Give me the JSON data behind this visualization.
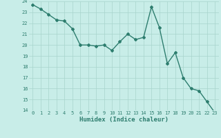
{
  "x": [
    0,
    1,
    2,
    3,
    4,
    5,
    6,
    7,
    8,
    9,
    10,
    11,
    12,
    13,
    14,
    15,
    16,
    17,
    18,
    19,
    20,
    21,
    22,
    23
  ],
  "y": [
    23.7,
    23.3,
    22.8,
    22.3,
    22.2,
    21.5,
    20.0,
    20.0,
    19.9,
    20.0,
    19.5,
    20.3,
    21.0,
    20.5,
    20.7,
    23.5,
    21.6,
    18.3,
    19.3,
    17.0,
    16.0,
    15.8,
    14.8,
    13.8
  ],
  "xlabel": "Humidex (Indice chaleur)",
  "ylim": [
    14,
    24
  ],
  "xlim": [
    -0.5,
    23.5
  ],
  "yticks": [
    14,
    15,
    16,
    17,
    18,
    19,
    20,
    21,
    22,
    23,
    24
  ],
  "xticks": [
    0,
    1,
    2,
    3,
    4,
    5,
    6,
    7,
    8,
    9,
    10,
    11,
    12,
    13,
    14,
    15,
    16,
    17,
    18,
    19,
    20,
    21,
    22,
    23
  ],
  "line_color": "#2d7d6e",
  "bg_color": "#c8ede8",
  "grid_color": "#a8d4cc",
  "marker": "D",
  "marker_size": 2.0,
  "linewidth": 1.0
}
